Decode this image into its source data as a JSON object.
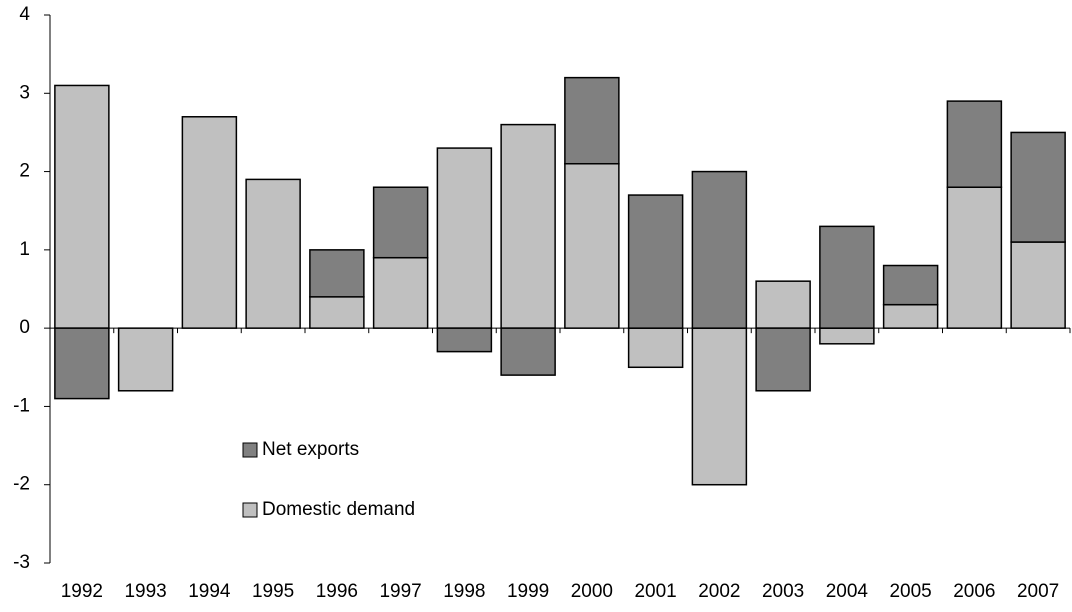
{
  "chart_data": {
    "type": "bar",
    "stacked": true,
    "categories": [
      "1992",
      "1993",
      "1994",
      "1995",
      "1996",
      "1997",
      "1998",
      "1999",
      "2000",
      "2001",
      "2002",
      "2003",
      "2004",
      "2005",
      "2006",
      "2007"
    ],
    "series": [
      {
        "name": "Domestic demand",
        "color": "#c0c0c0",
        "values": [
          3.1,
          -0.8,
          2.7,
          1.9,
          0.4,
          0.9,
          2.3,
          2.6,
          2.1,
          -0.5,
          -2.0,
          0.6,
          -0.2,
          0.3,
          1.8,
          1.1
        ]
      },
      {
        "name": "Net exports",
        "color": "#808080",
        "values": [
          -0.9,
          0,
          0,
          0,
          0.6,
          0.9,
          -0.3,
          -0.6,
          1.1,
          1.7,
          2.0,
          -0.8,
          1.3,
          0.5,
          1.1,
          1.4
        ]
      }
    ],
    "ylim": [
      -3,
      4
    ],
    "yticks": [
      -3,
      -2,
      -1,
      0,
      1,
      2,
      3,
      4
    ],
    "legend": "center-left"
  }
}
